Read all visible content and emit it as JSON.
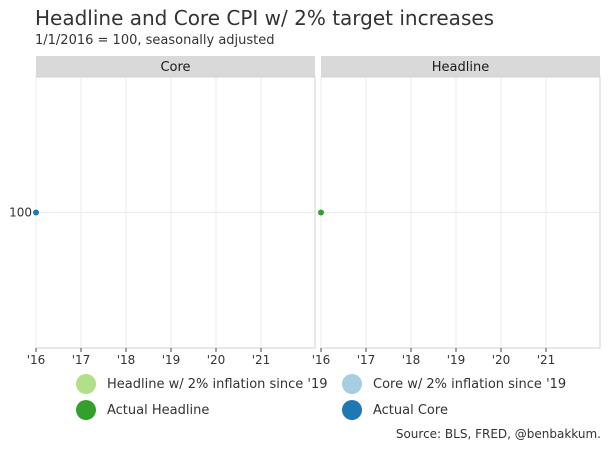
{
  "title": "Headline and Core CPI w/ 2% target increases",
  "subtitle": "1/1/2016 = 100, seasonally adjusted",
  "caption": "Source: BLS, FRED, @benbakkum.",
  "chart_data": {
    "type": "line",
    "panels": [
      {
        "label": "Core",
        "series": [
          {
            "name": "Core w/ 2% inflation since '19",
            "color": "#a6cee3",
            "x": [],
            "y": []
          },
          {
            "name": "Actual Core",
            "color": "#1f78b4",
            "x": [
              2016.0
            ],
            "y": [
              100
            ]
          }
        ]
      },
      {
        "label": "Headline",
        "series": [
          {
            "name": "Headline w/ 2% inflation since '19",
            "color": "#b2df8a",
            "x": [],
            "y": []
          },
          {
            "name": "Actual Headline",
            "color": "#33a02c",
            "x": [
              2016.0
            ],
            "y": [
              100
            ]
          }
        ]
      }
    ],
    "x_ticks": [
      2016,
      2017,
      2018,
      2019,
      2020,
      2021
    ],
    "x_tick_labels": [
      "'16",
      "'17",
      "'18",
      "'19",
      "'20",
      "'21"
    ],
    "xlim": [
      2016,
      2022.2
    ],
    "y_ticks": [
      100
    ],
    "y_tick_labels": [
      "100"
    ],
    "ylim": [
      99,
      101
    ],
    "grid": true,
    "legend": {
      "position": "bottom",
      "entries": [
        {
          "label": "Headline w/ 2% inflation since '19",
          "color": "#b2df8a"
        },
        {
          "label": "Core w/ 2% inflation since '19",
          "color": "#a6cee3"
        },
        {
          "label": "Actual Headline",
          "color": "#33a02c"
        },
        {
          "label": "Actual Core",
          "color": "#1f78b4"
        }
      ]
    }
  }
}
